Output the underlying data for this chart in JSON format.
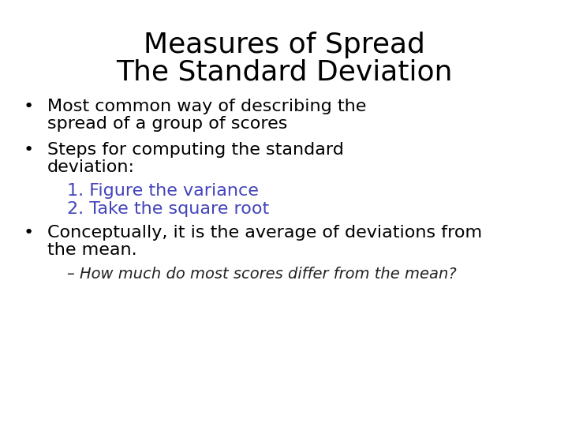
{
  "title_line1": "Measures of Spread",
  "title_line2": "The Standard Deviation",
  "title_fontsize": 26,
  "title_color": "#000000",
  "background_color": "#ffffff",
  "bullet_color": "#000000",
  "bullet_fontsize": 16,
  "numbered_color": "#4444bb",
  "numbered_fontsize": 16,
  "sub_italic_color": "#222222",
  "sub_italic_fontsize": 14,
  "bullet1_line1": "Most common way of describing the",
  "bullet1_line2": "spread of a group of scores",
  "bullet2_line1": "Steps for computing the standard",
  "bullet2_line2": "deviation:",
  "numbered": [
    "1. Figure the variance",
    "2. Take the square root"
  ],
  "bullet3_line1": "Conceptually, it is the average of deviations from",
  "bullet3_line2": "the mean.",
  "sub_italic": "– How much do most scores differ from the mean?"
}
